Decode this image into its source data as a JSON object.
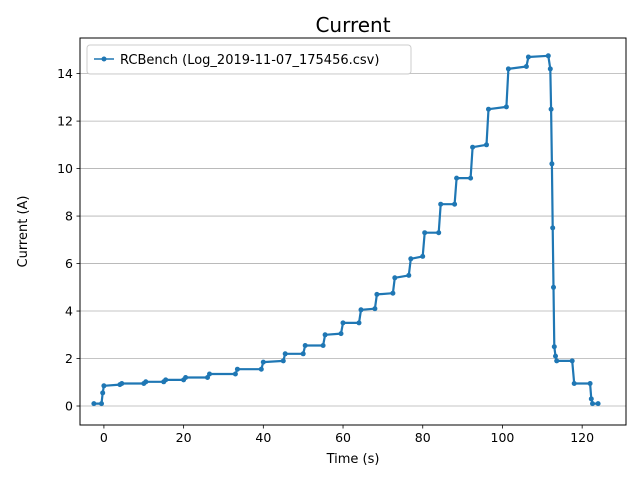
{
  "chart_data": {
    "type": "line",
    "title": "Current",
    "xlabel": "Time (s)",
    "ylabel": "Current (A)",
    "xlim": [
      -6,
      131
    ],
    "ylim": [
      -0.8,
      15.5
    ],
    "x_ticks": [
      0,
      20,
      40,
      60,
      80,
      100,
      120
    ],
    "y_ticks": [
      0,
      2,
      4,
      6,
      8,
      10,
      12,
      14
    ],
    "grid": "y-major",
    "legend_position": "upper-left",
    "line_color": "#1f77b4",
    "marker": "dot",
    "series": [
      {
        "name": "RCBench (Log_2019-11-07_175456.csv)",
        "points": [
          [
            -2.5,
            0.1
          ],
          [
            -0.6,
            0.1
          ],
          [
            -0.3,
            0.55
          ],
          [
            0.0,
            0.85
          ],
          [
            4.0,
            0.9
          ],
          [
            4.5,
            0.95
          ],
          [
            10.0,
            0.95
          ],
          [
            10.5,
            1.02
          ],
          [
            15.0,
            1.02
          ],
          [
            15.5,
            1.1
          ],
          [
            20.0,
            1.1
          ],
          [
            20.5,
            1.2
          ],
          [
            26.0,
            1.2
          ],
          [
            26.5,
            1.35
          ],
          [
            33.0,
            1.35
          ],
          [
            33.5,
            1.55
          ],
          [
            39.5,
            1.55
          ],
          [
            40.0,
            1.85
          ],
          [
            45.0,
            1.9
          ],
          [
            45.5,
            2.2
          ],
          [
            50.0,
            2.2
          ],
          [
            50.5,
            2.55
          ],
          [
            55.0,
            2.55
          ],
          [
            55.5,
            3.0
          ],
          [
            59.5,
            3.05
          ],
          [
            60.0,
            3.5
          ],
          [
            64.0,
            3.5
          ],
          [
            64.5,
            4.05
          ],
          [
            68.0,
            4.1
          ],
          [
            68.5,
            4.7
          ],
          [
            72.5,
            4.75
          ],
          [
            73.0,
            5.4
          ],
          [
            76.5,
            5.5
          ],
          [
            77.0,
            6.2
          ],
          [
            80.0,
            6.3
          ],
          [
            80.5,
            7.3
          ],
          [
            84.0,
            7.3
          ],
          [
            84.5,
            8.5
          ],
          [
            88.0,
            8.5
          ],
          [
            88.5,
            9.6
          ],
          [
            92.0,
            9.6
          ],
          [
            92.5,
            10.9
          ],
          [
            96.0,
            11.0
          ],
          [
            96.5,
            12.5
          ],
          [
            101.0,
            12.6
          ],
          [
            101.5,
            14.2
          ],
          [
            106.0,
            14.3
          ],
          [
            106.5,
            14.7
          ],
          [
            111.5,
            14.75
          ],
          [
            112.0,
            14.2
          ],
          [
            112.2,
            12.5
          ],
          [
            112.4,
            10.2
          ],
          [
            112.6,
            7.5
          ],
          [
            112.8,
            5.0
          ],
          [
            113.0,
            2.5
          ],
          [
            113.3,
            2.1
          ],
          [
            113.6,
            1.9
          ],
          [
            117.5,
            1.9
          ],
          [
            118.0,
            0.95
          ],
          [
            122.0,
            0.95
          ],
          [
            122.3,
            0.3
          ],
          [
            122.6,
            0.1
          ],
          [
            124.0,
            0.1
          ]
        ]
      }
    ]
  }
}
